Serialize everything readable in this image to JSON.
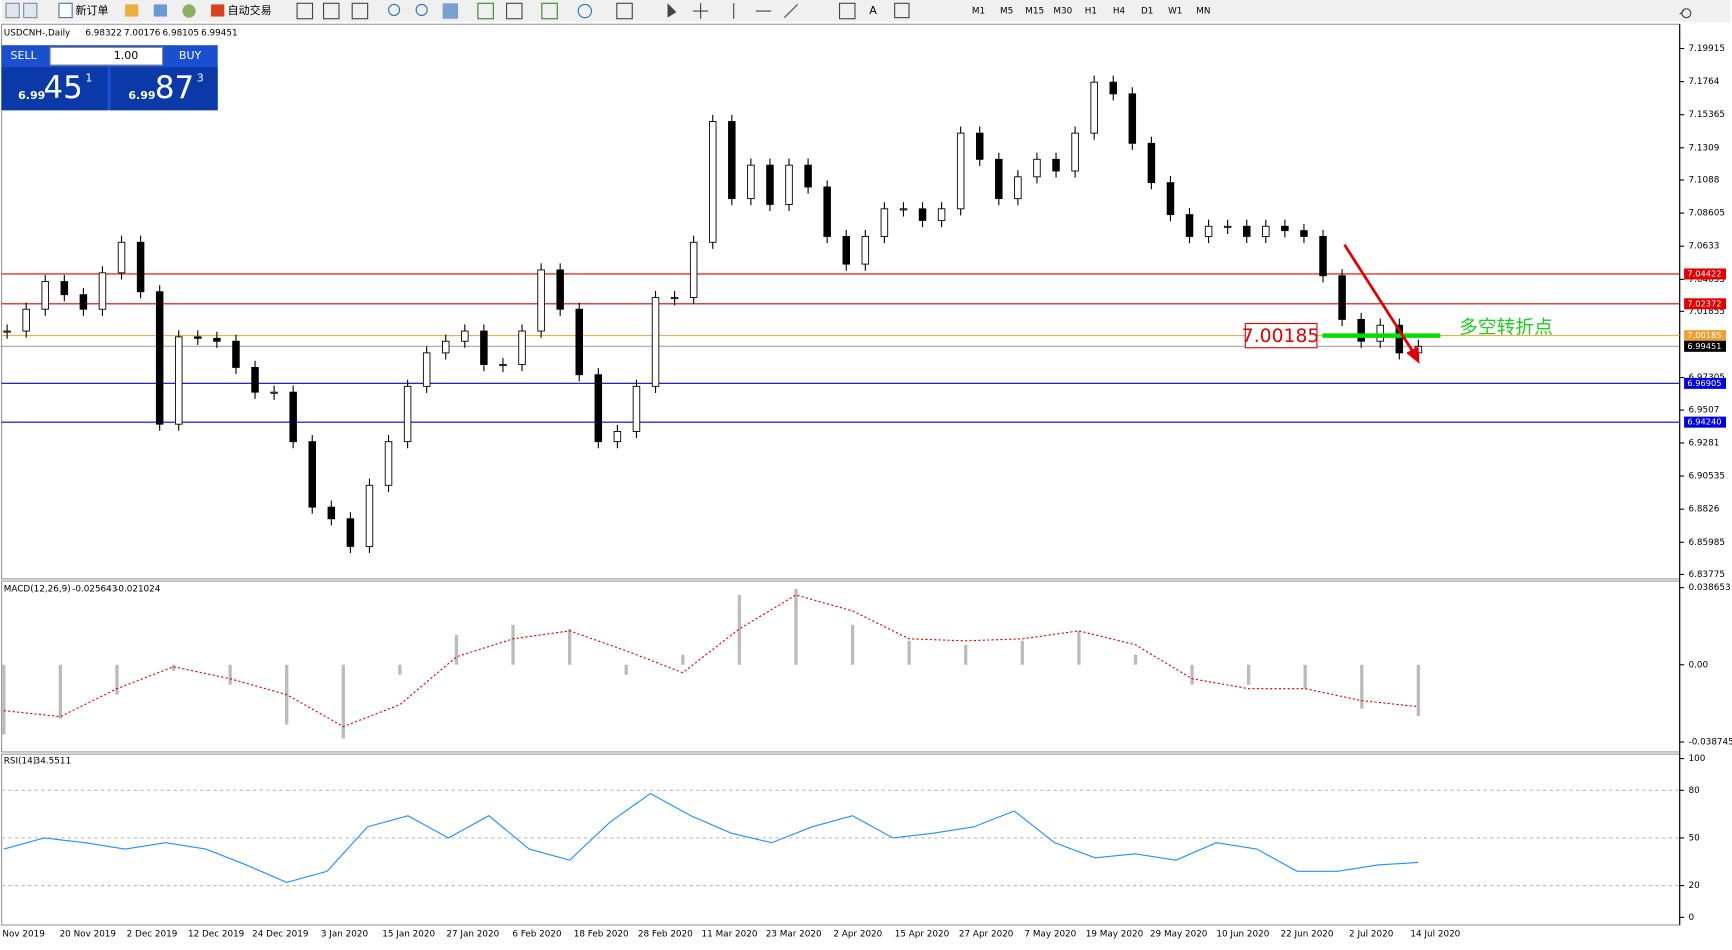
{
  "toolbar": {
    "new_order": "新订单",
    "auto_trade": "自动交易",
    "timeframes": [
      "M1",
      "M5",
      "M15",
      "M30",
      "H1",
      "H4",
      "D1",
      "W1",
      "MN"
    ]
  },
  "trade_panel": {
    "sell": "SELL",
    "buy": "BUY",
    "lots": "1.00",
    "sell_prefix": "6.99",
    "sell_big": "45",
    "sell_sup": "1",
    "buy_prefix": "6.99",
    "buy_big": "87",
    "buy_sup": "3"
  },
  "header": {
    "symbol": "USDCNH-,Daily",
    "ohlc": [
      6.98322,
      7.00176,
      6.98105,
      6.99451
    ]
  },
  "price_chart": {
    "type": "candlestick",
    "ylim": [
      6.83775,
      7.19915
    ],
    "yticks": [
      7.19915,
      7.1764,
      7.15365,
      7.1309,
      7.1088,
      7.08605,
      7.0633,
      7.04055,
      7.01855,
      6.97305,
      6.9507,
      6.9281,
      6.90535,
      6.8826,
      6.85985,
      6.83775
    ],
    "closes": [
      7.005,
      7.02,
      7.039,
      7.03,
      7.02,
      7.045,
      7.066,
      7.032,
      6.941,
      7.001,
      7.0,
      6.998,
      6.98,
      6.963,
      6.963,
      6.929,
      6.884,
      6.876,
      6.857,
      6.899,
      6.929,
      6.967,
      6.99,
      6.998,
      7.005,
      6.982,
      6.982,
      7.005,
      7.047,
      7.02,
      6.975,
      6.929,
      6.936,
      6.967,
      7.028,
      7.028,
      7.066,
      7.149,
      7.096,
      7.119,
      7.092,
      7.119,
      7.104,
      7.07,
      7.051,
      7.07,
      7.089,
      7.089,
      7.081,
      7.089,
      7.141,
      7.123,
      7.096,
      7.111,
      7.123,
      7.115,
      7.141,
      7.176,
      7.168,
      7.134,
      7.107,
      7.085,
      7.07,
      7.077,
      7.077,
      7.07,
      7.077,
      7.074,
      7.07,
      7.043,
      7.013,
      6.998,
      7.009,
      6.99,
      6.99451
    ],
    "levels": [
      {
        "value": 7.04422,
        "label": "7.04422",
        "color": "#e00000"
      },
      {
        "value": 7.02372,
        "label": "7.02372",
        "color": "#e00000"
      },
      {
        "value": 7.00185,
        "label": "7.00185",
        "color": "#f0a030"
      },
      {
        "value": 6.99451,
        "label": "6.99451",
        "color": "#000000"
      },
      {
        "value": 6.96905,
        "label": "6.96905",
        "color": "#0000dd"
      },
      {
        "value": 6.9424,
        "label": "6.94240",
        "color": "#0000dd"
      }
    ],
    "annotation_price": "7.00185",
    "annotation_text": "多空转折点"
  },
  "x_labels": [
    "Nov 2019",
    "20 Nov 2019",
    "2 Dec 2019",
    "12 Dec 2019",
    "24 Dec 2019",
    "3 Jan 2020",
    "15 Jan 2020",
    "27 Jan 2020",
    "6 Feb 2020",
    "18 Feb 2020",
    "28 Feb 2020",
    "11 Mar 2020",
    "23 Mar 2020",
    "2 Apr 2020",
    "15 Apr 2020",
    "27 Apr 2020",
    "7 May 2020",
    "19 May 2020",
    "29 May 2020",
    "10 Jun 2020",
    "22 Jun 2020",
    "2 Jul 2020",
    "14 Jul 2020"
  ],
  "macd": {
    "label": "MACD(12,26,9)",
    "ylim": [
      -0.038745,
      0.038653
    ],
    "yticks": [
      0.038653,
      {
        "value": 0,
        "label": "0.00"
      },
      -0.038745
    ],
    "main": [
      -0.035,
      -0.027,
      -0.015,
      -0.003,
      -0.01,
      -0.03,
      -0.037,
      -0.005,
      0.015,
      0.02,
      0.018,
      -0.005,
      0.005,
      0.035,
      0.038,
      0.02,
      0.012,
      0.01,
      0.012,
      0.017,
      0.005,
      -0.01,
      -0.01,
      -0.012,
      -0.022,
      -0.025643
    ],
    "signal": [
      -0.023,
      -0.026,
      -0.012,
      -0.001,
      -0.007,
      -0.015,
      -0.031,
      -0.02,
      0.004,
      0.013,
      0.017,
      0.007,
      -0.004,
      0.018,
      0.035,
      0.027,
      0.013,
      0.012,
      0.013,
      0.017,
      0.01,
      -0.007,
      -0.012,
      -0.012,
      -0.018,
      -0.021024
    ]
  },
  "rsi": {
    "label": "RSI(14)",
    "ylim": [
      0,
      100
    ],
    "yticks": [
      100,
      80,
      50,
      20,
      0
    ],
    "values": [
      43,
      50,
      47,
      43,
      47,
      43,
      33,
      22,
      29,
      57,
      64,
      50,
      64,
      43,
      36,
      60,
      78,
      64,
      53,
      47,
      57,
      64,
      50,
      53,
      57,
      67,
      47,
      37.5,
      40,
      36,
      47,
      43,
      29,
      29,
      33,
      34.5511
    ]
  }
}
